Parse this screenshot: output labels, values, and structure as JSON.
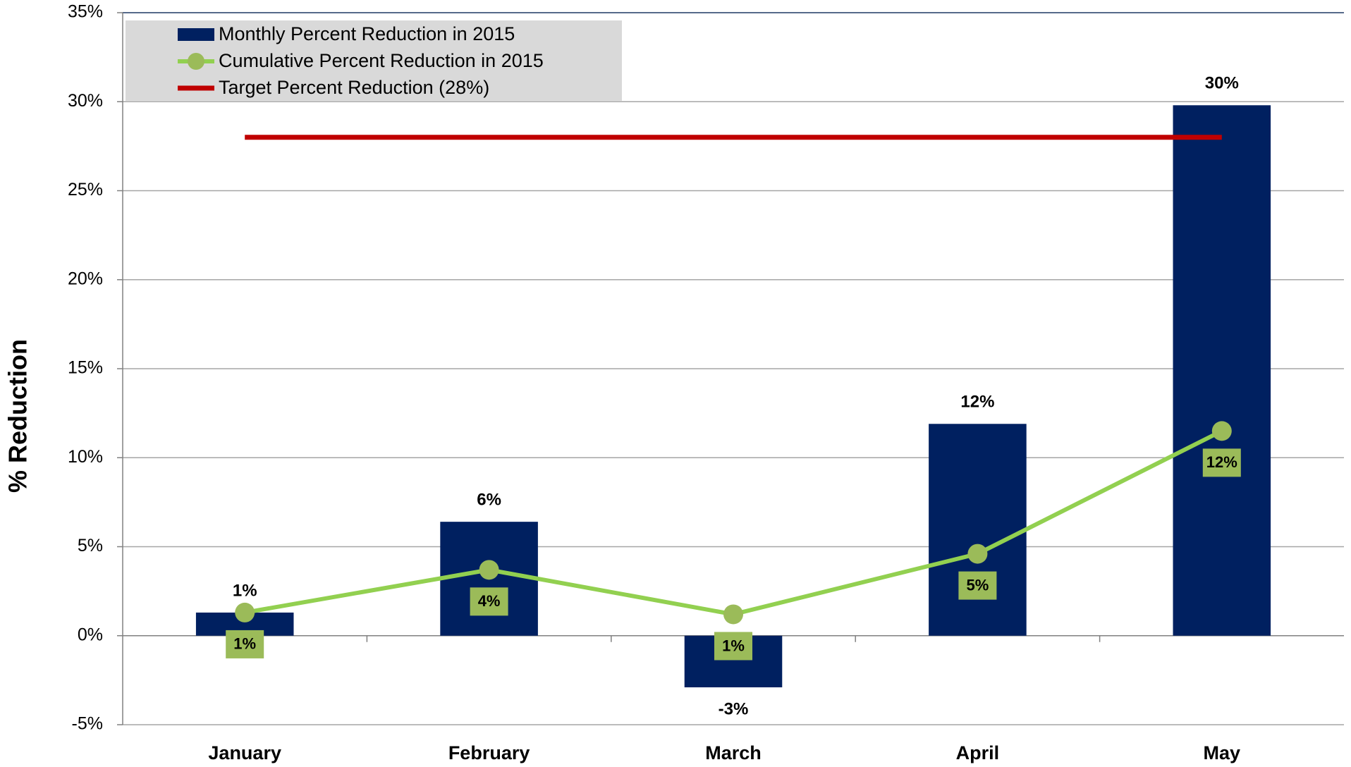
{
  "chart_data": {
    "type": "bar_line",
    "ylabel": "% Reduction",
    "categories": [
      "January",
      "February",
      "March",
      "April",
      "May"
    ],
    "series": [
      {
        "name": "Monthly Percent Reduction in 2015",
        "type": "bar",
        "color": "#002060",
        "values": [
          1.3,
          6.4,
          -2.9,
          11.9,
          29.8
        ],
        "value_labels": [
          "1%",
          "6%",
          "-3%",
          "12%",
          "30%"
        ]
      },
      {
        "name": "Cumulative Percent Reduction in 2015",
        "type": "line",
        "color": "#92d050",
        "marker_color": "#9bbb59",
        "values": [
          1.3,
          3.7,
          1.2,
          4.6,
          11.5
        ],
        "value_labels": [
          "1%",
          "4%",
          "1%",
          "5%",
          "12%"
        ]
      },
      {
        "name": "Target Percent Reduction (28%)",
        "type": "target",
        "color": "#c00000",
        "values": [
          28,
          28,
          28,
          28,
          28
        ]
      }
    ],
    "ylim": [
      -5,
      35
    ],
    "yticks": [
      {
        "value": -5,
        "label": "-5%"
      },
      {
        "value": 0,
        "label": "0%"
      },
      {
        "value": 5,
        "label": "5%"
      },
      {
        "value": 10,
        "label": "10%"
      },
      {
        "value": 15,
        "label": "15%"
      },
      {
        "value": 20,
        "label": "20%"
      },
      {
        "value": 25,
        "label": "25%"
      },
      {
        "value": 30,
        "label": "30%"
      },
      {
        "value": 35,
        "label": "35%"
      }
    ],
    "grid": true,
    "legend": "upper left"
  }
}
